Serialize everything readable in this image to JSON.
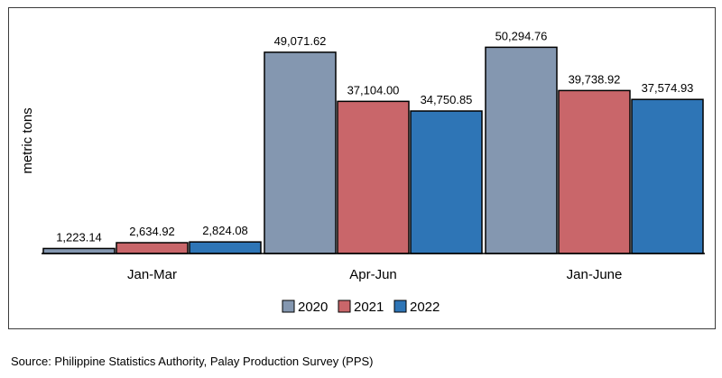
{
  "chart_data": {
    "type": "bar",
    "categories": [
      "Jan-Mar",
      "Apr-Jun",
      "Jan-June"
    ],
    "series": [
      {
        "name": "2020",
        "color": "#8497b0",
        "values": [
          1223.14,
          49071.62,
          50294.76
        ],
        "labels": [
          "1,223.14",
          "49,071.62",
          "50,294.76"
        ]
      },
      {
        "name": "2021",
        "color": "#c9666a",
        "values": [
          2634.92,
          37104.0,
          39738.92
        ],
        "labels": [
          "2,634.92",
          "37,104.00",
          "39,738.92"
        ]
      },
      {
        "name": "2022",
        "color": "#2e75b6",
        "values": [
          2824.08,
          34750.85,
          37574.93
        ],
        "labels": [
          "2,824.08",
          "34,750.85",
          "37,574.93"
        ]
      }
    ],
    "ylabel": "metric tons",
    "ylim": [
      0,
      55000
    ],
    "grid": false,
    "legend": "bottom-center"
  },
  "source": "Source: Philippine Statistics Authority, Palay Production Survey (PPS)"
}
